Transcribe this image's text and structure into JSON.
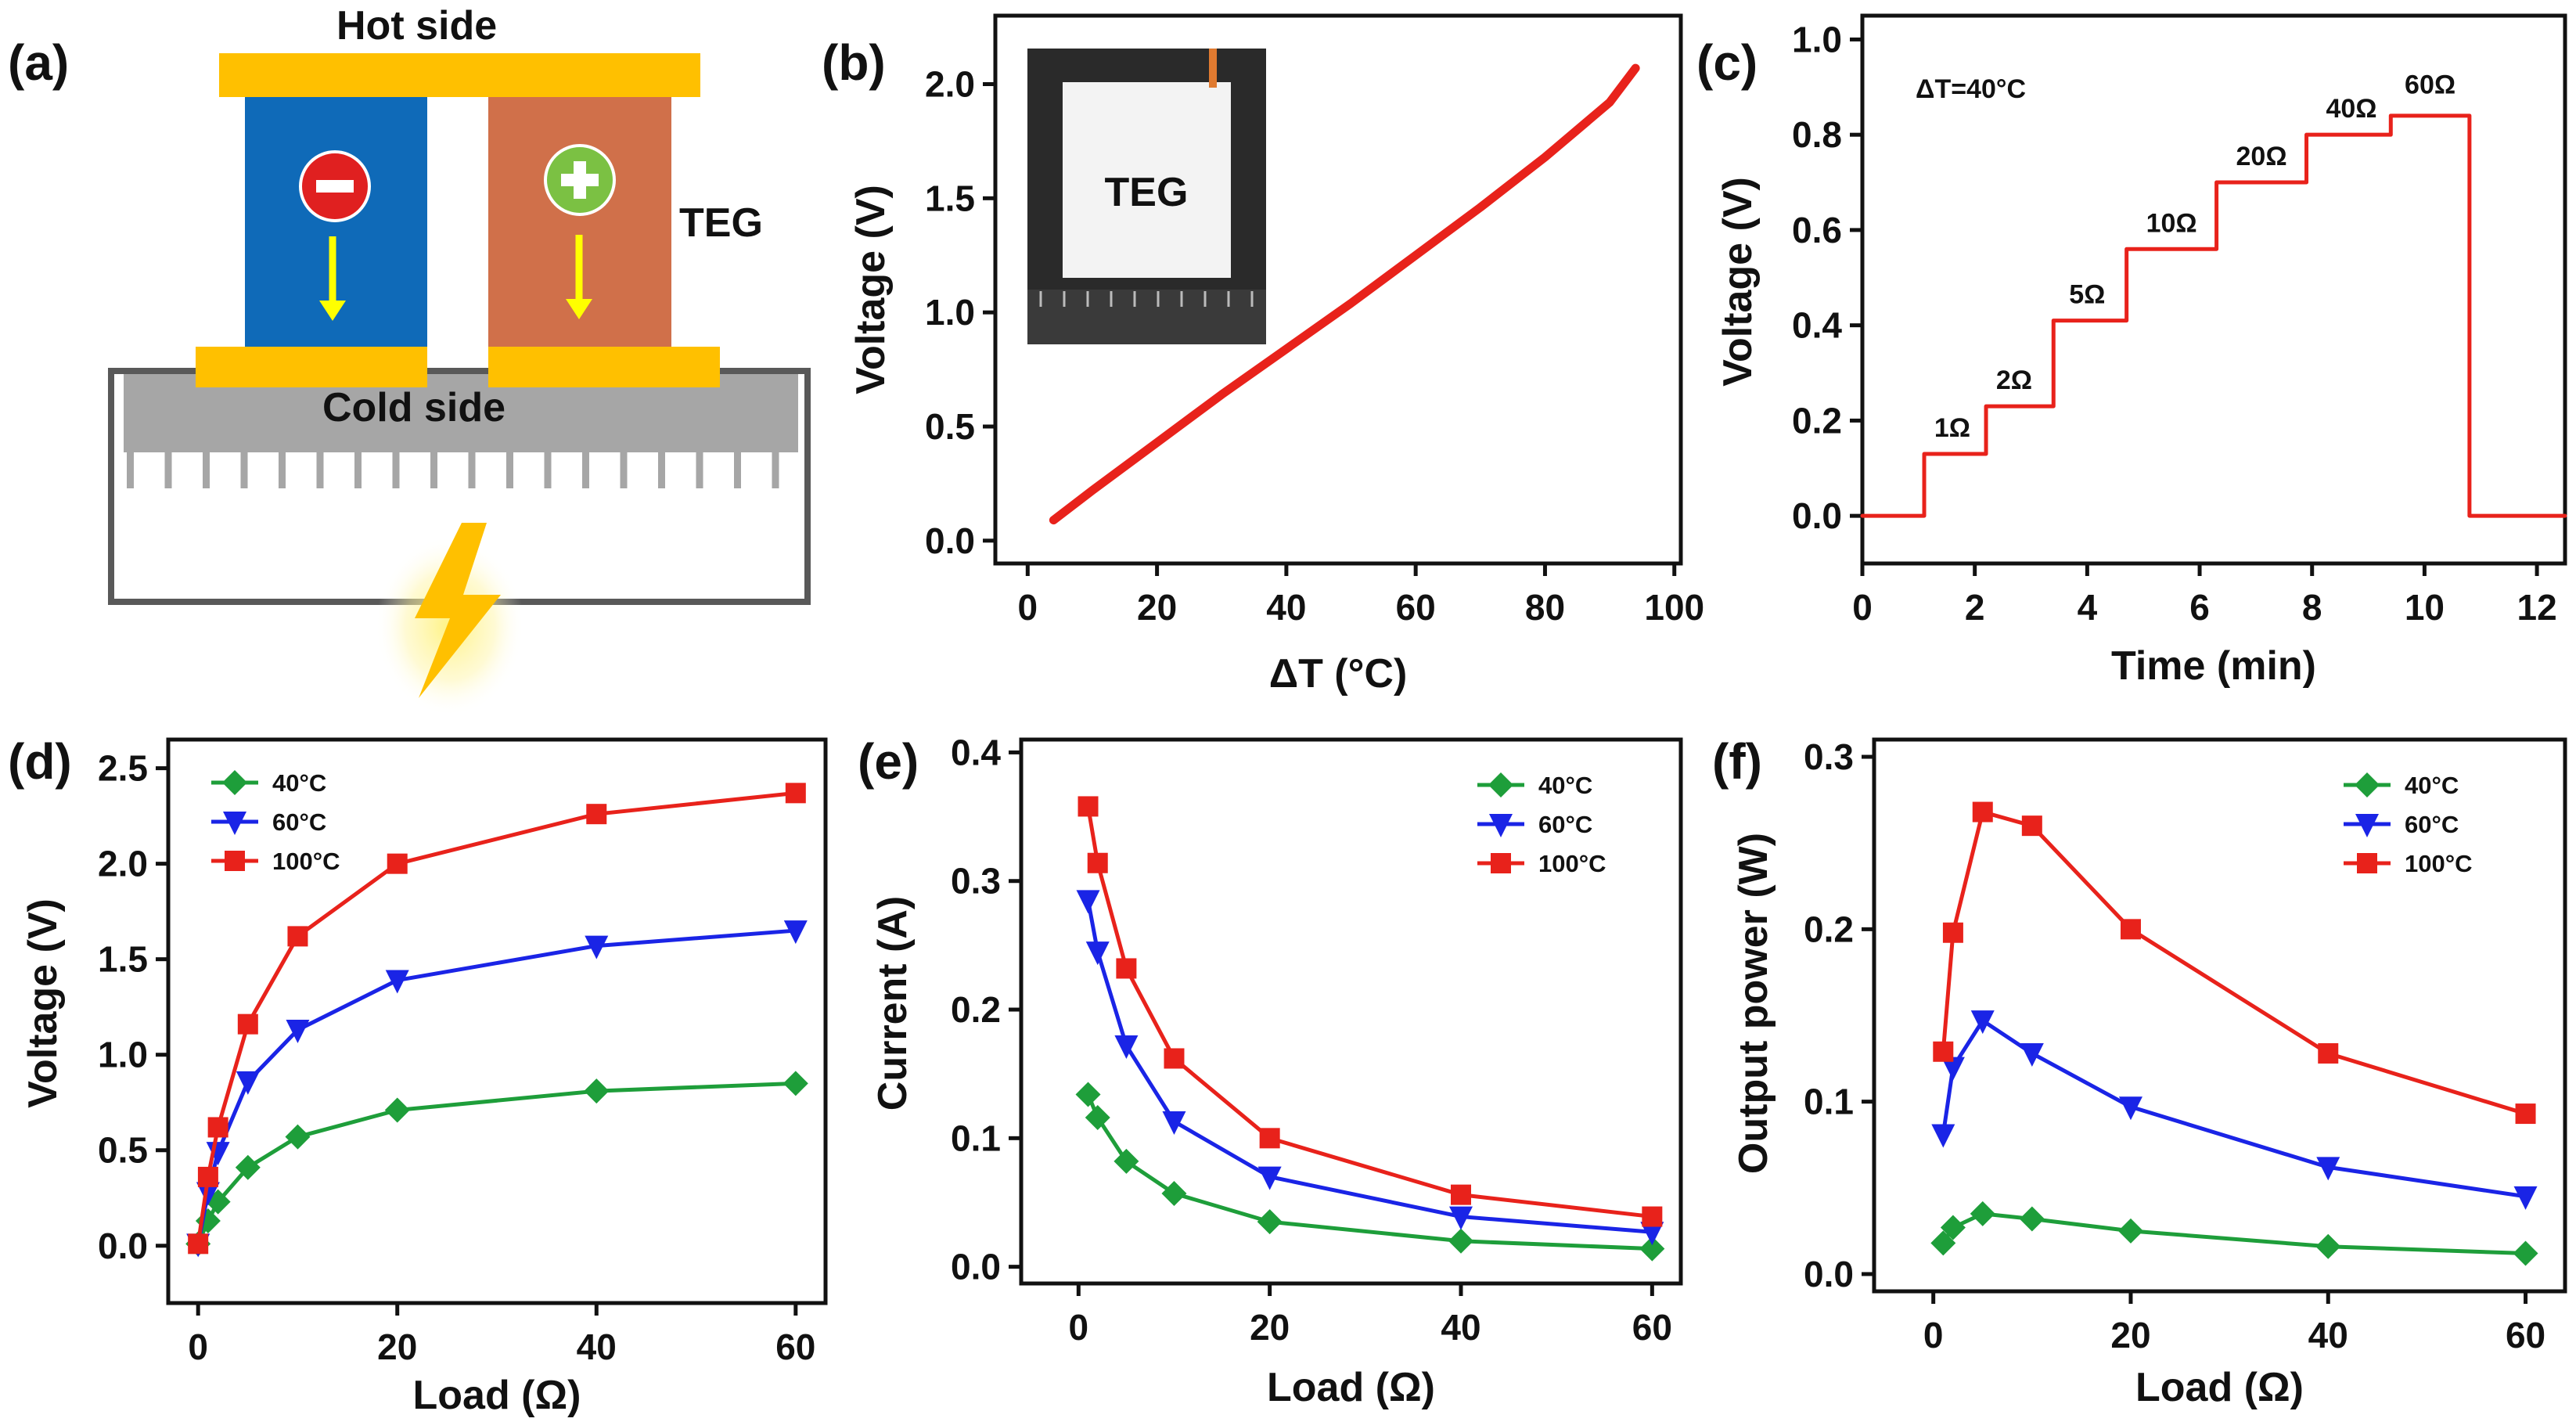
{
  "panel_labels": [
    "(a)",
    "(b)",
    "(c)",
    "(d)",
    "(e)",
    "(f)"
  ],
  "diagram": {
    "hot_side": "Hot side",
    "cold_side": "Cold side",
    "teg": "TEG",
    "colors": {
      "plate": "#FFC000",
      "n_leg": "#0F6AB8",
      "p_leg": "#D0704A",
      "sink": "#A6A6A6",
      "minus_circle": "#E02020",
      "plus_circle": "#7BC143",
      "arrow": "#FFFF00"
    }
  },
  "chart_data": [
    {
      "id": "b",
      "type": "line",
      "xlabel": "ΔT (°C)",
      "ylabel": "Voltage (V)",
      "xlim": [
        -5,
        101
      ],
      "ylim": [
        -0.1,
        2.3
      ],
      "xticks": [
        0,
        20,
        40,
        60,
        80,
        100
      ],
      "yticks": [
        0.0,
        0.5,
        1.0,
        1.5,
        2.0
      ],
      "inset_label": "TEG",
      "series": [
        {
          "name": "Voltage",
          "color": "#E8221B",
          "x": [
            4,
            10,
            20,
            30,
            40,
            50,
            60,
            70,
            80,
            90,
            94
          ],
          "y": [
            0.09,
            0.22,
            0.43,
            0.64,
            0.84,
            1.04,
            1.25,
            1.46,
            1.68,
            1.92,
            2.07
          ]
        }
      ]
    },
    {
      "id": "c",
      "type": "line",
      "annotation": "ΔT=40°C",
      "xlabel": "Time (min)",
      "ylabel": "Voltage (V)",
      "xlim": [
        0,
        12.5
      ],
      "ylim": [
        -0.1,
        1.05
      ],
      "xticks": [
        0,
        2,
        4,
        6,
        8,
        10,
        12
      ],
      "yticks": [
        0.0,
        0.2,
        0.4,
        0.6,
        0.8,
        1.0
      ],
      "step_labels": [
        {
          "text": "1Ω",
          "x": 1.6,
          "y": 0.13
        },
        {
          "text": "2Ω",
          "x": 2.7,
          "y": 0.23
        },
        {
          "text": "5Ω",
          "x": 4.0,
          "y": 0.41
        },
        {
          "text": "10Ω",
          "x": 5.5,
          "y": 0.56
        },
        {
          "text": "20Ω",
          "x": 7.1,
          "y": 0.7
        },
        {
          "text": "40Ω",
          "x": 8.7,
          "y": 0.8
        },
        {
          "text": "60Ω",
          "x": 10.1,
          "y": 0.85
        }
      ],
      "series": [
        {
          "name": "Voltage",
          "color": "#E8221B",
          "x": [
            0,
            1.1,
            1.1,
            2.2,
            2.2,
            3.4,
            3.4,
            4.7,
            4.7,
            6.3,
            6.3,
            7.9,
            7.9,
            9.4,
            9.4,
            10.8,
            10.8,
            12.5
          ],
          "y": [
            0.0,
            0.0,
            0.13,
            0.13,
            0.23,
            0.23,
            0.41,
            0.41,
            0.56,
            0.56,
            0.7,
            0.7,
            0.8,
            0.8,
            0.84,
            0.84,
            0.0,
            0.0
          ]
        }
      ]
    },
    {
      "id": "d",
      "type": "line",
      "xlabel": "Load (Ω)",
      "ylabel": "Voltage (V)",
      "xlim": [
        -3,
        63
      ],
      "ylim": [
        -0.3,
        2.65
      ],
      "xticks": [
        0,
        20,
        40,
        60
      ],
      "yticks": [
        0.0,
        0.5,
        1.0,
        1.5,
        2.0,
        2.5
      ],
      "legend_position": "top-left",
      "series": [
        {
          "name": "40°C",
          "color": "#1E9E3A",
          "marker": "diamond",
          "x": [
            0,
            1,
            2,
            5,
            10,
            20,
            40,
            60
          ],
          "y": [
            0.01,
            0.13,
            0.23,
            0.41,
            0.57,
            0.71,
            0.81,
            0.85
          ]
        },
        {
          "name": "60°C",
          "color": "#1A24E6",
          "marker": "triangle-down",
          "x": [
            0,
            1,
            2,
            5,
            10,
            20,
            40,
            60
          ],
          "y": [
            0.01,
            0.28,
            0.49,
            0.86,
            1.13,
            1.39,
            1.57,
            1.65
          ]
        },
        {
          "name": "100°C",
          "color": "#E8221B",
          "marker": "square",
          "x": [
            0,
            1,
            2,
            5,
            10,
            20,
            40,
            60
          ],
          "y": [
            0.01,
            0.36,
            0.62,
            1.16,
            1.62,
            2.0,
            2.26,
            2.37
          ]
        }
      ]
    },
    {
      "id": "e",
      "type": "line",
      "xlabel": "Load (Ω)",
      "ylabel": "Current (A)",
      "xlim": [
        -6,
        63
      ],
      "ylim": [
        -0.013,
        0.41
      ],
      "xticks": [
        0,
        20,
        40,
        60
      ],
      "yticks": [
        0.0,
        0.1,
        0.2,
        0.3,
        0.4
      ],
      "legend_position": "top-right",
      "series": [
        {
          "name": "40°C",
          "color": "#1E9E3A",
          "marker": "diamond",
          "x": [
            1,
            2,
            5,
            10,
            20,
            40,
            60
          ],
          "y": [
            0.134,
            0.116,
            0.082,
            0.057,
            0.035,
            0.02,
            0.014
          ]
        },
        {
          "name": "60°C",
          "color": "#1A24E6",
          "marker": "triangle-down",
          "x": [
            1,
            2,
            5,
            10,
            20,
            40,
            60
          ],
          "y": [
            0.285,
            0.245,
            0.172,
            0.113,
            0.07,
            0.039,
            0.027
          ]
        },
        {
          "name": "100°C",
          "color": "#E8221B",
          "marker": "square",
          "x": [
            1,
            2,
            5,
            10,
            20,
            40,
            60
          ],
          "y": [
            0.358,
            0.314,
            0.232,
            0.162,
            0.1,
            0.056,
            0.039
          ]
        }
      ]
    },
    {
      "id": "f",
      "type": "line",
      "xlabel": "Load (Ω)",
      "ylabel": "Output power (W)",
      "xlim": [
        -6,
        64
      ],
      "ylim": [
        -0.01,
        0.31
      ],
      "xticks": [
        0,
        20,
        40,
        60
      ],
      "yticks": [
        0.0,
        0.1,
        0.2,
        0.3
      ],
      "legend_position": "top-right",
      "series": [
        {
          "name": "40°C",
          "color": "#1E9E3A",
          "marker": "diamond",
          "x": [
            1,
            2,
            5,
            10,
            20,
            40,
            60
          ],
          "y": [
            0.018,
            0.027,
            0.035,
            0.032,
            0.025,
            0.016,
            0.012
          ]
        },
        {
          "name": "60°C",
          "color": "#1A24E6",
          "marker": "triangle-down",
          "x": [
            1,
            2,
            5,
            10,
            20,
            40,
            60
          ],
          "y": [
            0.081,
            0.12,
            0.147,
            0.128,
            0.097,
            0.062,
            0.045
          ]
        },
        {
          "name": "100°C",
          "color": "#E8221B",
          "marker": "square",
          "x": [
            1,
            2,
            5,
            10,
            20,
            40,
            60
          ],
          "y": [
            0.129,
            0.198,
            0.268,
            0.26,
            0.2,
            0.128,
            0.093
          ]
        }
      ]
    }
  ]
}
